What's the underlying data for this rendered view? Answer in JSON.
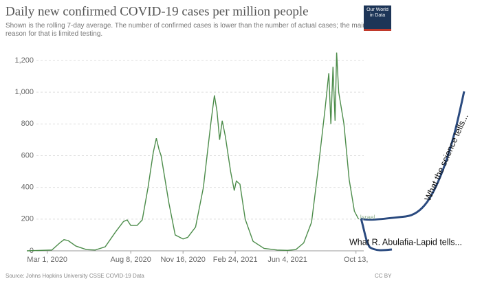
{
  "chart_data": {
    "type": "line",
    "title": "Daily new confirmed COVID-19 cases per million people",
    "subtitle": "Shown is the rolling 7-day average. The number of confirmed cases is lower than the number of actual cases; the main reason for that is limited testing.",
    "logo": "Our World in Data",
    "source": "Source: Johns Hopkins University CSSE COVID-19 Data",
    "license": "CC BY",
    "annotations": [
      "What the science tells...",
      "What R. Abulafia-Lapid tells..."
    ],
    "x": [
      "2020-01-22",
      "2020-03-10",
      "2020-03-25",
      "2020-04-02",
      "2020-04-10",
      "2020-04-25",
      "2020-05-15",
      "2020-06-01",
      "2020-06-20",
      "2020-07-10",
      "2020-07-25",
      "2020-08-01",
      "2020-08-08",
      "2020-08-20",
      "2020-08-30",
      "2020-09-10",
      "2020-09-20",
      "2020-09-26",
      "2020-10-01",
      "2020-10-05",
      "2020-10-20",
      "2020-11-01",
      "2020-11-16",
      "2020-11-25",
      "2020-12-10",
      "2020-12-25",
      "2021-01-08",
      "2021-01-15",
      "2021-01-20",
      "2021-01-25",
      "2021-01-30",
      "2021-02-05",
      "2021-02-15",
      "2021-02-22",
      "2021-02-26",
      "2021-03-05",
      "2021-03-15",
      "2021-03-30",
      "2021-04-20",
      "2021-05-15",
      "2021-06-04",
      "2021-06-20",
      "2021-07-05",
      "2021-07-20",
      "2021-08-01",
      "2021-08-15",
      "2021-08-22",
      "2021-08-26",
      "2021-08-30",
      "2021-09-03",
      "2021-09-06",
      "2021-09-10",
      "2021-09-20",
      "2021-09-30",
      "2021-10-10",
      "2021-10-18"
    ],
    "series": [
      {
        "name": "Israel",
        "color": "#4c8c4a",
        "values": [
          0,
          5,
          50,
          70,
          65,
          30,
          8,
          5,
          25,
          120,
          185,
          195,
          160,
          160,
          195,
          400,
          620,
          710,
          640,
          600,
          300,
          100,
          75,
          85,
          150,
          400,
          800,
          980,
          880,
          700,
          820,
          720,
          500,
          380,
          440,
          420,
          200,
          60,
          15,
          5,
          3,
          8,
          50,
          180,
          500,
          900,
          1120,
          800,
          1160,
          820,
          1250,
          1000,
          800,
          450,
          250,
          200
        ]
      }
    ],
    "xlim": [
      "2020-01-22",
      "2021-11-10"
    ],
    "xticks": [
      {
        "value": "2020-03-01",
        "label": "Mar 1, 2020"
      },
      {
        "value": "2020-08-08",
        "label": "Aug 8, 2020"
      },
      {
        "value": "2020-11-16",
        "label": "Nov 16, 2020"
      },
      {
        "value": "2021-02-24",
        "label": "Feb 24, 2021"
      },
      {
        "value": "2021-06-04",
        "label": "Jun 4, 2021"
      },
      {
        "value": "2021-10-13",
        "label": "Oct 13,"
      }
    ],
    "ylim": [
      0,
      1200
    ],
    "yticks": [
      0,
      200,
      400,
      600,
      800,
      {
        "value": 1000,
        "label": "1,000"
      },
      {
        "value": 1200,
        "label": "1,200"
      }
    ],
    "grid": true
  }
}
